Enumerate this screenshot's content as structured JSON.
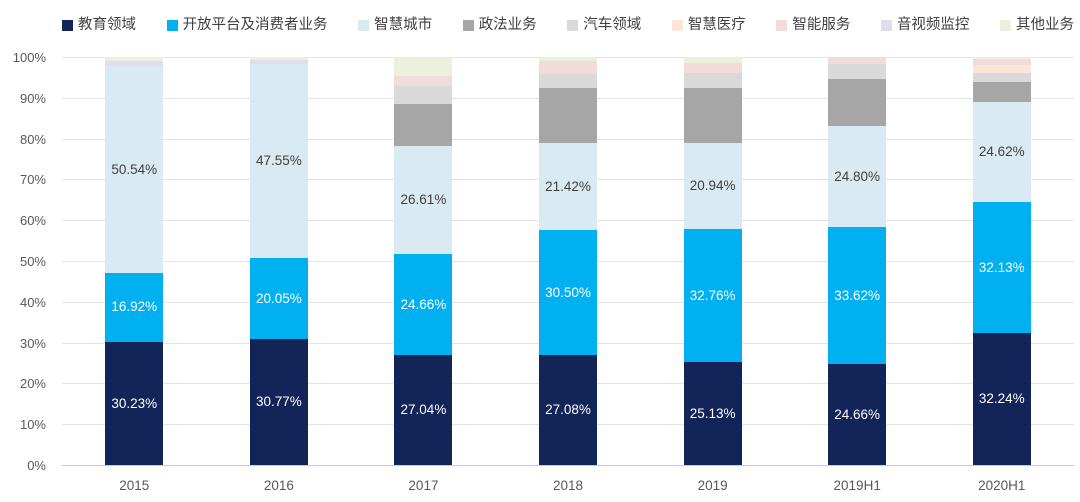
{
  "chart_data": {
    "type": "bar",
    "stacked": true,
    "percent_stacked": true,
    "title": "",
    "xlabel": "",
    "ylabel": "",
    "grid": true,
    "legend_position": "top",
    "categories": [
      "2015",
      "2016",
      "2017",
      "2018",
      "2019",
      "2019H1",
      "2020H1"
    ],
    "series": [
      {
        "name": "教育领域",
        "color": "#132558",
        "label_color": "#ffffff",
        "show_labels": true,
        "values": [
          30.23,
          30.77,
          27.04,
          27.08,
          25.13,
          24.66,
          32.24
        ]
      },
      {
        "name": "开放平台及消费者业务",
        "color": "#00b0f0",
        "label_color": "#ffffff",
        "show_labels": true,
        "values": [
          16.92,
          20.05,
          24.66,
          30.5,
          32.76,
          33.62,
          32.13
        ]
      },
      {
        "name": "智慧城市",
        "color": "#d9eaf2",
        "label_color": "#404040",
        "show_labels": true,
        "values": [
          50.54,
          47.55,
          26.61,
          21.42,
          20.94,
          24.8,
          24.62
        ]
      },
      {
        "name": "政法业务",
        "color": "#a6a6a6",
        "label_color": "#404040",
        "show_labels": false,
        "values": [
          0,
          0,
          10.3,
          13.5,
          13.5,
          11.52,
          5.0
        ]
      },
      {
        "name": "汽车领域",
        "color": "#d9d9d9",
        "label_color": "#404040",
        "show_labels": false,
        "values": [
          0,
          0,
          4.4,
          3.3,
          3.7,
          3.8,
          2.2
        ]
      },
      {
        "name": "智慧医疗",
        "color": "#fbe5d6",
        "label_color": "#404040",
        "show_labels": false,
        "values": [
          0,
          0,
          0,
          0,
          0,
          0,
          1.9
        ]
      },
      {
        "name": "智能服务",
        "color": "#f2dcdb",
        "label_color": "#404040",
        "show_labels": false,
        "values": [
          0,
          0,
          2.4,
          3.2,
          2.5,
          1.6,
          1.5
        ]
      },
      {
        "name": "音视频监控",
        "color": "#e2dded",
        "label_color": "#404040",
        "show_labels": false,
        "values": [
          1.4,
          0.8,
          0,
          0,
          0,
          0,
          0
        ]
      },
      {
        "name": "其他业务",
        "color": "#ebf1de",
        "label_color": "#404040",
        "show_labels": false,
        "values": [
          0.91,
          0.83,
          4.59,
          1.0,
          1.47,
          0,
          0.4
        ]
      }
    ],
    "y_axis": {
      "min": 0,
      "max": 100,
      "tick_step": 10,
      "ticks": [
        "100%",
        "90%",
        "80%",
        "70%",
        "60%",
        "50%",
        "40%",
        "30%",
        "20%",
        "10%",
        "0%"
      ]
    },
    "value_suffix": "%"
  }
}
